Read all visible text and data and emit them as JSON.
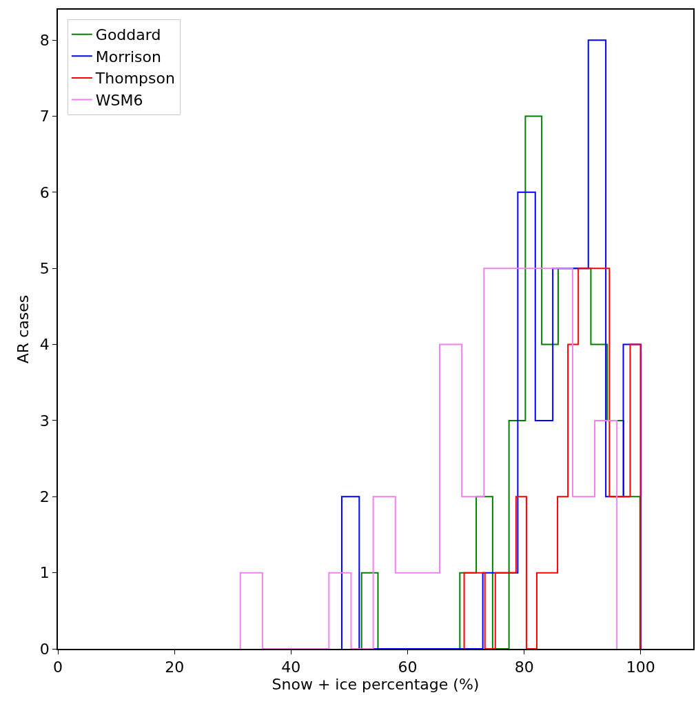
{
  "chart_data": {
    "type": "step",
    "xlabel": "Snow + ice percentage (%)",
    "ylabel": "AR cases",
    "xlim": [
      0,
      109
    ],
    "ylim": [
      0,
      8.4
    ],
    "xticks": [
      0,
      20,
      40,
      60,
      80,
      100
    ],
    "yticks": [
      0,
      1,
      2,
      3,
      4,
      5,
      6,
      7,
      8
    ],
    "legend": "top left",
    "series": [
      {
        "name": "Goddard",
        "color": "#008000",
        "x": [
          52.1,
          52.1,
          54.91,
          57.72,
          60.53,
          63.34,
          66.15,
          68.96,
          71.77,
          74.58,
          77.39,
          80.2,
          83.01,
          85.82,
          88.63,
          91.44,
          94.25,
          97.06,
          99.87
        ],
        "values": [
          0,
          1,
          0,
          0,
          0,
          0,
          0,
          1,
          2,
          0,
          3,
          7,
          4,
          5,
          5,
          4,
          3,
          2,
          0
        ]
      },
      {
        "name": "Morrison",
        "color": "#0000ff",
        "x": [
          48.7,
          48.7,
          51.7,
          54.7,
          57.8,
          60.8,
          63.8,
          66.8,
          69.8,
          72.9,
          75.9,
          78.9,
          81.9,
          84.9,
          88.0,
          91.0,
          94.0,
          97.0,
          100.0
        ],
        "values": [
          0,
          2,
          0,
          0,
          0,
          0,
          0,
          0,
          0,
          1,
          1,
          6,
          3,
          5,
          5,
          8,
          2,
          4,
          0
        ]
      },
      {
        "name": "Thompson",
        "color": "#ff0000",
        "x": [
          69.7,
          69.7,
          71.48,
          73.26,
          75.04,
          76.82,
          78.6,
          80.38,
          82.16,
          83.94,
          85.72,
          87.5,
          89.28,
          91.06,
          92.84,
          94.62,
          96.4,
          98.18,
          99.96
        ],
        "values": [
          0,
          1,
          1,
          0,
          1,
          1,
          2,
          0,
          1,
          1,
          2,
          4,
          5,
          5,
          5,
          2,
          2,
          4,
          0
        ]
      },
      {
        "name": "WSM6",
        "color": "#ee82ee",
        "x": [
          31.3,
          31.3,
          35.1,
          38.9,
          42.7,
          46.5,
          50.3,
          54.1,
          57.9,
          61.7,
          65.5,
          69.3,
          73.1,
          76.9,
          80.7,
          84.5,
          88.3,
          92.1,
          95.9
        ],
        "values": [
          0,
          1,
          0,
          0,
          0,
          1,
          0,
          2,
          1,
          1,
          4,
          2,
          5,
          5,
          5,
          5,
          2,
          3,
          0
        ]
      }
    ]
  }
}
